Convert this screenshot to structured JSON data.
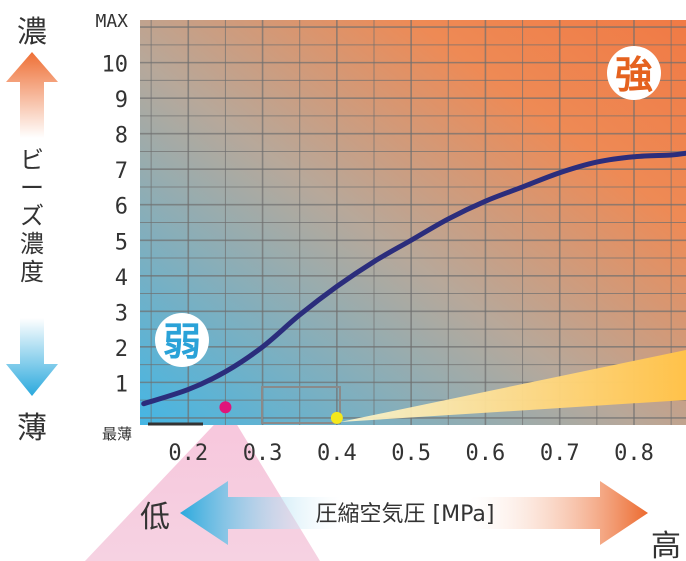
{
  "chart_data": {
    "type": "line",
    "x": [
      0.14,
      0.2,
      0.25,
      0.3,
      0.35,
      0.4,
      0.45,
      0.5,
      0.55,
      0.6,
      0.65,
      0.7,
      0.75,
      0.8,
      0.85,
      0.87
    ],
    "y": [
      0.4,
      0.8,
      1.3,
      2.0,
      2.9,
      3.7,
      4.4,
      5.0,
      5.6,
      6.1,
      6.5,
      6.9,
      7.2,
      7.35,
      7.4,
      7.45
    ],
    "xlim": [
      0.135,
      0.87
    ],
    "ylim": [
      -0.2,
      11.2
    ],
    "x_ticks": [
      0.2,
      0.3,
      0.4,
      0.5,
      0.6,
      0.7,
      0.8
    ],
    "x_tick_labels": [
      "0.2",
      "0.3",
      "0.4",
      "0.5",
      "0.6",
      "0.7",
      "0.8"
    ],
    "y_ticks": [
      1,
      2,
      3,
      4,
      5,
      6,
      7,
      8,
      9,
      10
    ],
    "y_tick_labels": [
      "1",
      "2",
      "3",
      "4",
      "5",
      "6",
      "7",
      "8",
      "9",
      "10"
    ],
    "y_max_label": "MAX",
    "y_min_label": "最薄",
    "x_axis_label": "圧縮空気圧 [MPa]",
    "x_low_label": "低",
    "x_high_label": "高",
    "y_axis_label": "ビーズ濃度",
    "y_top_label": "濃",
    "y_bottom_label": "薄",
    "weak_badge": "弱",
    "strong_badge": "強",
    "markers": [
      {
        "x": 0.25,
        "y": 0.3,
        "color": "#e0157a"
      },
      {
        "x": 0.4,
        "y": 0.0,
        "color": "#f5e81c"
      }
    ],
    "grid": true,
    "line_color": "#2b2d7c",
    "colors": {
      "weak": "#47b3e0",
      "strong": "#ee7a3c",
      "marker_pink": "#e0157a",
      "marker_yellow": "#f5e81c"
    }
  }
}
